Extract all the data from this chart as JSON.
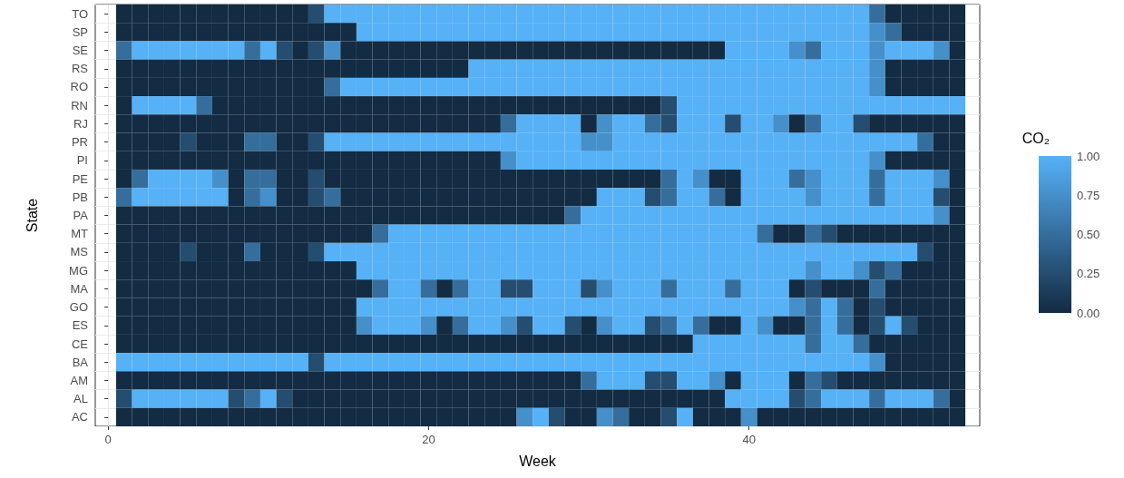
{
  "chart_data": {
    "type": "heatmap",
    "xlabel": "Week",
    "ylabel": "State",
    "clabel": "CO₂",
    "x": [
      1,
      2,
      3,
      4,
      5,
      6,
      7,
      8,
      9,
      10,
      11,
      12,
      13,
      14,
      15,
      16,
      17,
      18,
      19,
      20,
      21,
      22,
      23,
      24,
      25,
      26,
      27,
      28,
      29,
      30,
      31,
      32,
      33,
      34,
      35,
      36,
      37,
      38,
      39,
      40,
      41,
      42,
      43,
      44,
      45,
      46,
      47,
      48,
      49,
      50,
      51,
      52,
      53
    ],
    "y_categories": [
      "TO",
      "SP",
      "SE",
      "RS",
      "RO",
      "RN",
      "RJ",
      "PR",
      "PI",
      "PE",
      "PB",
      "PA",
      "MT",
      "MS",
      "MG",
      "MA",
      "GO",
      "ES",
      "CE",
      "BA",
      "AM",
      "AL",
      "AC"
    ],
    "cells": [
      [
        0,
        0,
        0,
        0,
        0,
        0,
        0,
        0,
        0,
        0,
        0,
        0,
        0.25,
        1,
        1,
        1,
        1,
        1,
        1,
        1,
        1,
        1,
        1,
        1,
        1,
        1,
        1,
        1,
        1,
        1,
        1,
        1,
        1,
        1,
        1,
        1,
        1,
        1,
        1,
        1,
        1,
        1,
        1,
        1,
        1,
        1,
        1,
        0.5,
        0,
        0,
        0,
        0,
        0
      ],
      [
        0,
        0,
        0,
        0,
        0,
        0,
        0,
        0,
        0,
        0,
        0,
        0,
        0,
        0,
        0,
        1,
        1,
        1,
        1,
        1,
        1,
        1,
        1,
        1,
        1,
        1,
        1,
        1,
        1,
        1,
        1,
        1,
        1,
        1,
        1,
        1,
        1,
        1,
        1,
        1,
        1,
        1,
        1,
        1,
        1,
        1,
        1,
        0.75,
        0.5,
        0,
        0,
        0,
        0
      ],
      [
        0.5,
        1,
        1,
        1,
        1,
        1,
        1,
        1,
        0.5,
        1,
        0.25,
        0,
        0.25,
        0.75,
        0,
        0,
        0,
        0,
        0,
        0,
        0,
        0,
        0,
        0,
        0,
        0,
        0,
        0,
        0,
        0,
        0,
        0,
        0,
        0,
        0,
        0,
        0,
        0,
        1,
        1,
        1,
        1,
        0.75,
        0.5,
        1,
        1,
        1,
        0.75,
        1,
        1,
        1,
        0.75,
        0
      ],
      [
        0,
        0,
        0,
        0,
        0,
        0,
        0,
        0,
        0,
        0,
        0,
        0,
        0,
        0,
        0,
        0,
        0,
        0,
        0,
        0,
        0,
        0,
        1,
        1,
        1,
        1,
        1,
        1,
        1,
        1,
        1,
        1,
        1,
        1,
        1,
        1,
        1,
        1,
        1,
        1,
        1,
        1,
        1,
        1,
        1,
        1,
        1,
        0.75,
        0,
        0,
        0,
        0,
        0
      ],
      [
        0,
        0,
        0,
        0,
        0,
        0,
        0,
        0,
        0,
        0,
        0,
        0,
        0,
        0.5,
        1,
        1,
        1,
        1,
        1,
        1,
        1,
        1,
        1,
        1,
        1,
        1,
        1,
        1,
        1,
        1,
        1,
        1,
        1,
        1,
        1,
        1,
        1,
        1,
        1,
        1,
        1,
        1,
        1,
        1,
        1,
        1,
        1,
        0.75,
        0,
        0,
        0,
        0,
        0
      ],
      [
        0,
        1,
        1,
        1,
        1,
        0.5,
        0,
        0,
        0,
        0,
        0,
        0,
        0,
        0,
        0,
        0,
        0,
        0,
        0,
        0,
        0,
        0,
        0,
        0,
        0,
        0,
        0,
        0,
        0,
        0,
        0,
        0,
        0,
        0,
        0.25,
        1,
        1,
        1,
        1,
        1,
        1,
        1,
        1,
        1,
        1,
        1,
        1,
        1,
        1,
        1,
        1,
        1,
        1
      ],
      [
        0,
        0,
        0,
        0,
        0,
        0,
        0,
        0,
        0,
        0,
        0,
        0,
        0,
        0,
        0,
        0,
        0,
        0,
        0,
        0,
        0,
        0,
        0,
        0,
        0.5,
        1,
        1,
        1,
        1,
        0,
        0.75,
        1,
        1,
        0.5,
        0.25,
        1,
        1,
        1,
        0.25,
        1,
        1,
        0.75,
        0,
        0.5,
        1,
        1,
        0.25,
        0,
        0,
        0,
        0,
        0,
        0
      ],
      [
        0,
        0,
        0,
        0,
        0.25,
        0,
        0,
        0,
        0.5,
        0.5,
        0,
        0,
        0.25,
        1,
        1,
        1,
        1,
        1,
        1,
        1,
        1,
        1,
        1,
        1,
        1,
        1,
        1,
        1,
        1,
        0.75,
        0.75,
        1,
        1,
        1,
        1,
        1,
        1,
        1,
        1,
        1,
        1,
        1,
        1,
        1,
        1,
        1,
        1,
        1,
        1,
        1,
        0.5,
        0,
        0
      ],
      [
        0,
        0,
        0,
        0,
        0,
        0,
        0,
        0,
        0,
        0,
        0,
        0,
        0,
        0,
        0,
        0,
        0,
        0,
        0,
        0,
        0,
        0,
        0,
        0,
        0.75,
        1,
        1,
        1,
        1,
        1,
        1,
        1,
        1,
        1,
        1,
        1,
        1,
        1,
        1,
        1,
        1,
        1,
        1,
        1,
        1,
        1,
        1,
        0.75,
        0,
        0,
        0,
        0,
        0
      ],
      [
        0,
        0.5,
        1,
        1,
        1,
        1,
        0.75,
        0,
        0.5,
        0.5,
        0,
        0,
        0.25,
        0,
        0,
        0,
        0,
        0,
        0,
        0,
        0,
        0,
        0,
        0,
        0,
        0,
        0,
        0,
        0,
        0,
        0,
        0,
        0,
        0,
        0.5,
        1,
        0.75,
        0,
        0,
        1,
        1,
        1,
        0.5,
        0.75,
        1,
        1,
        1,
        0.5,
        1,
        1,
        1,
        0.75,
        0
      ],
      [
        0.5,
        1,
        1,
        1,
        1,
        1,
        1,
        0,
        0.5,
        0.75,
        0,
        0,
        0.25,
        0.5,
        0,
        0,
        0,
        0,
        0,
        0,
        0,
        0,
        0,
        0,
        0,
        0,
        0,
        0,
        0,
        0,
        1,
        1,
        1,
        0.25,
        0.5,
        1,
        1,
        0.5,
        0,
        1,
        1,
        1,
        1,
        0.75,
        1,
        1,
        1,
        0.5,
        1,
        1,
        1,
        0.25,
        0
      ],
      [
        0,
        0,
        0,
        0,
        0,
        0,
        0,
        0,
        0,
        0,
        0,
        0,
        0,
        0,
        0,
        0,
        0,
        0,
        0,
        0,
        0,
        0,
        0,
        0,
        0,
        0,
        0,
        0,
        0.5,
        1,
        1,
        1,
        1,
        1,
        1,
        1,
        1,
        1,
        1,
        1,
        1,
        1,
        1,
        1,
        1,
        1,
        1,
        1,
        1,
        1,
        1,
        0.75,
        0
      ],
      [
        0,
        0,
        0,
        0,
        0,
        0,
        0,
        0,
        0,
        0,
        0,
        0,
        0,
        0,
        0,
        0,
        0.5,
        1,
        1,
        1,
        1,
        1,
        1,
        1,
        1,
        1,
        1,
        1,
        1,
        1,
        1,
        1,
        1,
        1,
        1,
        1,
        1,
        1,
        1,
        1,
        0.5,
        0,
        0,
        0.5,
        0.25,
        0,
        0,
        0,
        0,
        0,
        0,
        0,
        0
      ],
      [
        0,
        0,
        0,
        0,
        0.25,
        0,
        0,
        0,
        0.5,
        0,
        0,
        0,
        0.25,
        1,
        1,
        1,
        1,
        1,
        1,
        1,
        1,
        1,
        1,
        1,
        1,
        1,
        1,
        1,
        1,
        1,
        1,
        1,
        1,
        1,
        1,
        1,
        1,
        1,
        1,
        1,
        1,
        1,
        1,
        1,
        1,
        1,
        1,
        1,
        1,
        1,
        0.25,
        0,
        0
      ],
      [
        0,
        0,
        0,
        0,
        0,
        0,
        0,
        0,
        0,
        0,
        0,
        0,
        0,
        0,
        0,
        1,
        1,
        1,
        1,
        1,
        1,
        1,
        1,
        1,
        1,
        1,
        1,
        1,
        1,
        1,
        1,
        1,
        1,
        1,
        1,
        1,
        1,
        1,
        1,
        1,
        1,
        1,
        1,
        0.75,
        1,
        1,
        0.75,
        0.25,
        0.5,
        0,
        0,
        0,
        0
      ],
      [
        0,
        0,
        0,
        0,
        0,
        0,
        0,
        0,
        0,
        0,
        0,
        0,
        0,
        0,
        0,
        0,
        0.5,
        1,
        1,
        0.5,
        0,
        0.5,
        1,
        1,
        0.25,
        0.25,
        1,
        1,
        1,
        0.25,
        0.75,
        1,
        1,
        1,
        0.5,
        1,
        1,
        1,
        0.5,
        1,
        1,
        1,
        0,
        0.25,
        0,
        0,
        0,
        0.5,
        0,
        0,
        0,
        0,
        0
      ],
      [
        0,
        0,
        0,
        0,
        0,
        0,
        0,
        0,
        0,
        0,
        0,
        0,
        0,
        0,
        0,
        1,
        1,
        1,
        1,
        1,
        1,
        1,
        1,
        1,
        1,
        1,
        1,
        1,
        1,
        1,
        1,
        1,
        1,
        1,
        1,
        1,
        1,
        1,
        1,
        1,
        1,
        1,
        0.75,
        0.5,
        1,
        0.5,
        0,
        0.25,
        0,
        0,
        0,
        0,
        0
      ],
      [
        0,
        0,
        0,
        0,
        0,
        0,
        0,
        0,
        0,
        0,
        0,
        0,
        0,
        0,
        0,
        0.75,
        1,
        1,
        1,
        0.75,
        0,
        0.5,
        1,
        1,
        0.75,
        0.25,
        1,
        1,
        0.25,
        0,
        0.75,
        1,
        1,
        0.25,
        0.5,
        1,
        0.5,
        0,
        0,
        1,
        0.75,
        0,
        0,
        0.5,
        1,
        0.5,
        0,
        0.25,
        1,
        0.25,
        0,
        0,
        0
      ],
      [
        0,
        0,
        0,
        0,
        0,
        0,
        0,
        0,
        0,
        0,
        0,
        0,
        0,
        0,
        0,
        0,
        0,
        0,
        0,
        0,
        0,
        0,
        0,
        0,
        0,
        0,
        0,
        0,
        0,
        0,
        0,
        0,
        0,
        0,
        0,
        0,
        1,
        1,
        1,
        1,
        1,
        1,
        1,
        0.5,
        1,
        1,
        0.5,
        0,
        0,
        0,
        0,
        0,
        0
      ],
      [
        1,
        1,
        1,
        1,
        1,
        1,
        1,
        1,
        1,
        1,
        1,
        1,
        0.25,
        1,
        1,
        1,
        1,
        1,
        1,
        1,
        1,
        1,
        1,
        1,
        1,
        1,
        1,
        1,
        1,
        1,
        1,
        1,
        1,
        1,
        1,
        1,
        1,
        1,
        1,
        1,
        1,
        1,
        1,
        1,
        1,
        1,
        1,
        0.75,
        0,
        0,
        0,
        0,
        0
      ],
      [
        0,
        0,
        0,
        0,
        0,
        0,
        0,
        0,
        0,
        0,
        0,
        0,
        0,
        0,
        0,
        0,
        0,
        0,
        0,
        0,
        0,
        0,
        0,
        0,
        0,
        0,
        0,
        0,
        0,
        0.5,
        1,
        1,
        1,
        0.25,
        0.25,
        1,
        1,
        0.75,
        0,
        1,
        1,
        1,
        0,
        0.5,
        0.25,
        0,
        0,
        0,
        0,
        0,
        0,
        0,
        0
      ],
      [
        0.25,
        1,
        1,
        1,
        1,
        1,
        1,
        0.25,
        0.5,
        1,
        0.25,
        0,
        0,
        0,
        0,
        0,
        0,
        0,
        0,
        0,
        0,
        0,
        0,
        0,
        0,
        0,
        0,
        0,
        0,
        0,
        0,
        0,
        0,
        0,
        0,
        0,
        0,
        0,
        1,
        1,
        1,
        1,
        0.25,
        0.5,
        1,
        1,
        1,
        0.5,
        1,
        1,
        1,
        0.5,
        0
      ],
      [
        0,
        0,
        0,
        0,
        0,
        0,
        0,
        0,
        0,
        0,
        0,
        0,
        0,
        0,
        0,
        0,
        0,
        0,
        0,
        0,
        0,
        0,
        0,
        0,
        0,
        0.75,
        1,
        0.25,
        0,
        0,
        0.75,
        0.5,
        0,
        0,
        0.25,
        1,
        0,
        0,
        0,
        0.75,
        0,
        0,
        0,
        0,
        0,
        0,
        0,
        0,
        0,
        0,
        0,
        0,
        0
      ]
    ],
    "xlim": [
      -0.8,
      54.4
    ],
    "xticks": [
      0,
      20,
      40
    ],
    "clim": [
      0,
      1
    ],
    "cticks": [
      {
        "value": 0,
        "label": "0.00"
      },
      {
        "value": 0.25,
        "label": "0.25"
      },
      {
        "value": 0.5,
        "label": "0.50"
      },
      {
        "value": 0.75,
        "label": "0.75"
      },
      {
        "value": 1,
        "label": "1.00"
      }
    ],
    "grid": true
  }
}
